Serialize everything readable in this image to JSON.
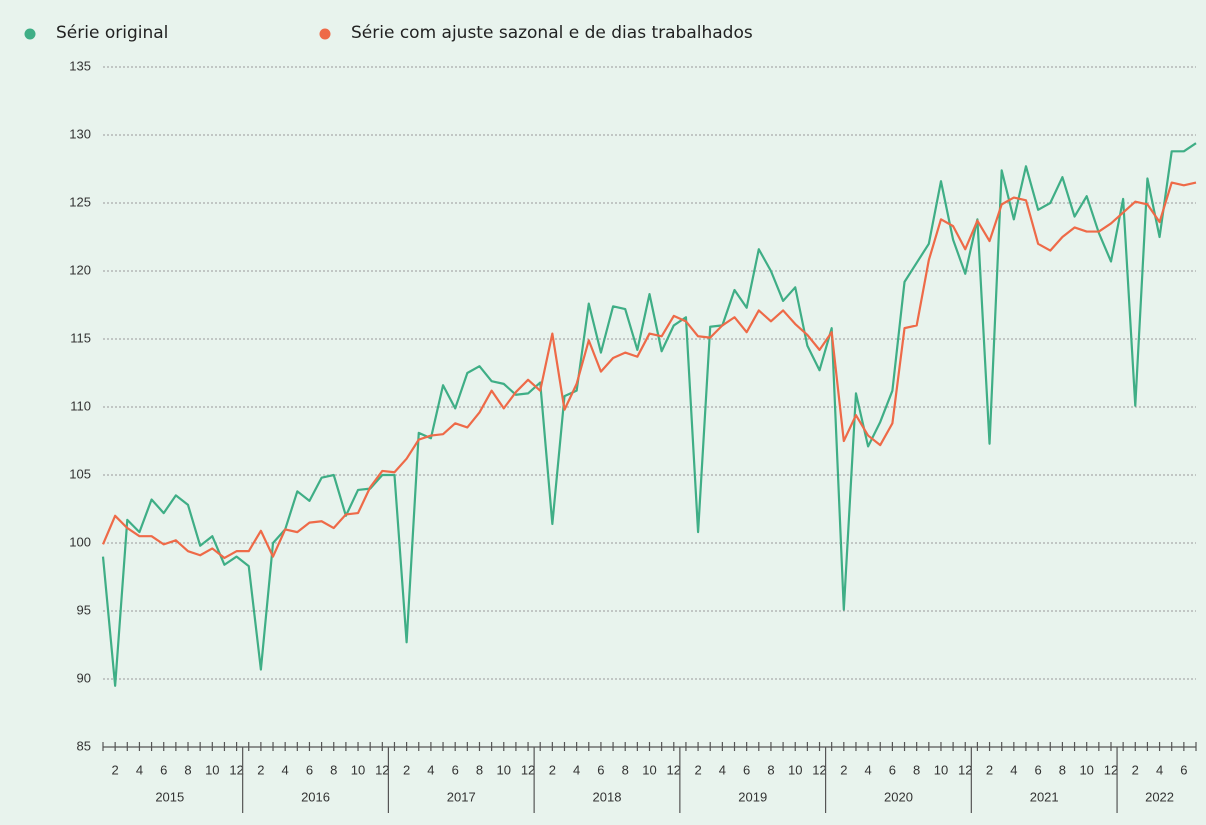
{
  "chart_data": {
    "type": "line",
    "categories": [
      null,
      "2",
      null,
      "4",
      null,
      "6",
      null,
      "8",
      null,
      "10",
      null,
      "12",
      null,
      "2",
      null,
      "4",
      null,
      "6",
      null,
      "8",
      null,
      "10",
      null,
      "12",
      null,
      "2",
      null,
      "4",
      null,
      "6",
      null,
      "8",
      null,
      "10",
      null,
      "12",
      null,
      "2",
      null,
      "4",
      null,
      "6",
      null,
      "8",
      null,
      "10",
      null,
      "12",
      null,
      "2",
      null,
      "4",
      null,
      "6",
      null,
      "8",
      null,
      "10",
      null,
      "12",
      null,
      "2",
      null,
      "4",
      null,
      "6",
      null,
      "8",
      null,
      "10",
      null,
      "12",
      null,
      "2",
      null,
      "4",
      null,
      "6",
      null,
      "8",
      null,
      "10",
      null,
      "12",
      null,
      "2",
      null,
      "4",
      null,
      "6",
      null
    ],
    "years": [
      "2015",
      "2016",
      "2017",
      "2018",
      "2019",
      "2020",
      "2021",
      "2022"
    ],
    "series": [
      {
        "name": "Série original",
        "color": "#3fae86",
        "values": [
          99.0,
          89.5,
          101.7,
          100.8,
          103.2,
          102.2,
          103.5,
          102.8,
          99.8,
          100.5,
          98.4,
          99.0,
          98.3,
          90.7,
          100.0,
          101.0,
          103.8,
          103.1,
          104.8,
          105.0,
          102.0,
          103.9,
          104.0,
          105.0,
          105.0,
          92.7,
          108.1,
          107.7,
          111.6,
          109.9,
          112.5,
          113.0,
          111.9,
          111.7,
          110.9,
          111.0,
          111.8,
          101.4,
          110.8,
          111.2,
          117.6,
          114.0,
          117.4,
          117.2,
          114.2,
          118.3,
          114.1,
          116.0,
          116.6,
          100.8,
          115.9,
          116.0,
          118.6,
          117.3,
          121.6,
          120.0,
          117.8,
          118.8,
          114.5,
          112.7,
          115.8,
          95.1,
          111.0,
          107.1,
          108.9,
          111.2,
          119.2,
          120.6,
          122.0,
          126.6,
          122.3,
          119.8,
          123.8,
          107.3,
          127.4,
          123.8,
          127.7,
          124.5,
          125.0,
          126.9,
          124.0,
          125.5,
          122.8,
          120.7,
          125.3,
          110.1,
          126.8,
          122.5,
          128.8,
          128.8,
          129.4
        ]
      },
      {
        "name": "Série com ajuste sazonal e de dias trabalhados",
        "color": "#ee6a48",
        "values": [
          99.9,
          102.0,
          101.1,
          100.5,
          100.5,
          99.9,
          100.2,
          99.4,
          99.1,
          99.6,
          98.9,
          99.4,
          99.4,
          100.9,
          99.0,
          101.0,
          100.8,
          101.5,
          101.6,
          101.1,
          102.1,
          102.2,
          104.1,
          105.3,
          105.2,
          106.2,
          107.6,
          107.9,
          108.0,
          108.8,
          108.5,
          109.6,
          111.2,
          109.9,
          111.1,
          112.0,
          111.2,
          115.4,
          109.8,
          111.7,
          114.9,
          112.6,
          113.6,
          114.0,
          113.7,
          115.4,
          115.2,
          116.7,
          116.3,
          115.2,
          115.1,
          116.0,
          116.6,
          115.5,
          117.1,
          116.3,
          117.1,
          116.1,
          115.3,
          114.2,
          115.5,
          107.5,
          109.4,
          107.9,
          107.2,
          108.8,
          115.8,
          116.0,
          120.8,
          123.8,
          123.3,
          121.6,
          123.7,
          122.2,
          124.9,
          125.4,
          125.2,
          122.0,
          121.5,
          122.5,
          123.2,
          122.9,
          122.9,
          123.5,
          124.3,
          125.1,
          124.9,
          123.6,
          126.5,
          126.3,
          126.5
        ]
      }
    ],
    "ylim": [
      85,
      135
    ],
    "yticks": [
      85,
      90,
      95,
      100,
      105,
      110,
      115,
      120,
      125,
      130,
      135
    ],
    "grid": true
  }
}
